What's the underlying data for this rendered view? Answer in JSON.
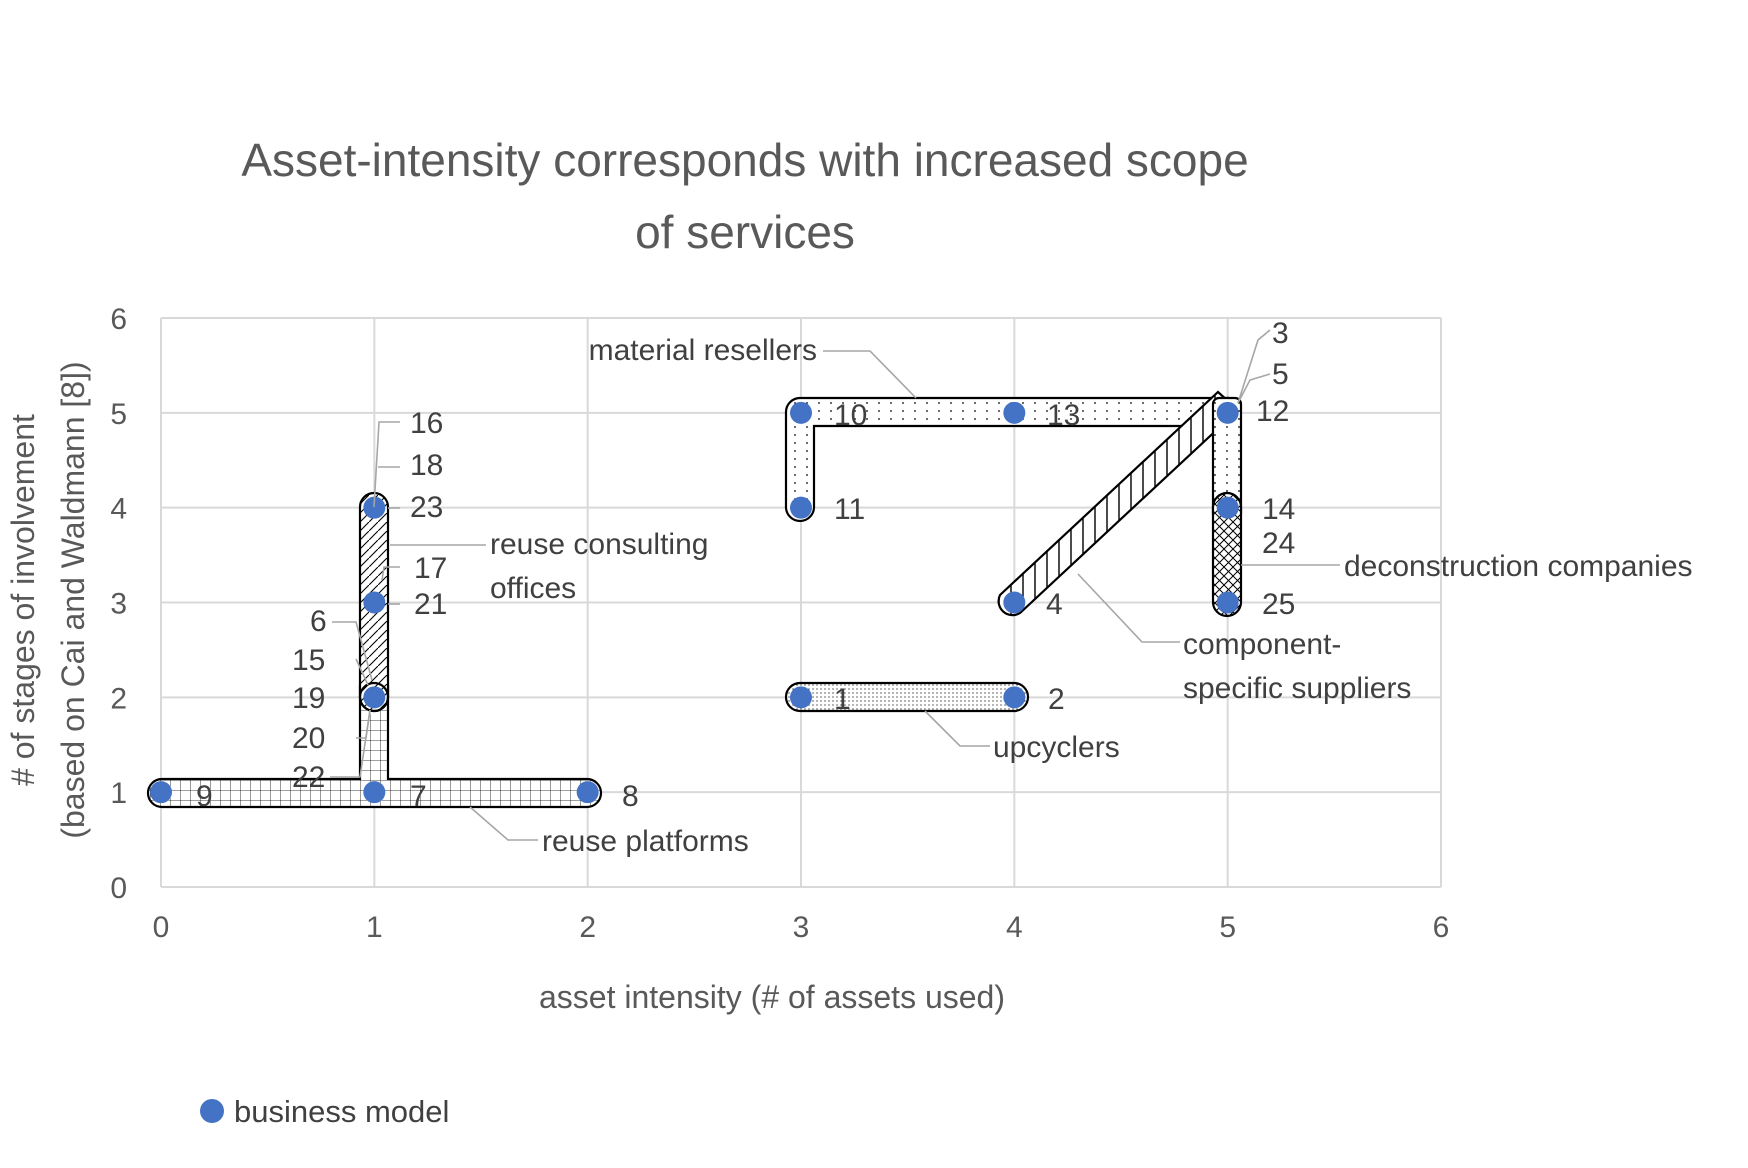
{
  "chart_data": {
    "type": "scatter",
    "title_lines": [
      "Asset-intensity corresponds with increased scope",
      "of services"
    ],
    "xlabel": "asset intensity (# of assets used)",
    "ylabel_lines": [
      "# of stages of involvement",
      "(based on Cai and Waldmann [8])"
    ],
    "xlim": [
      0,
      6
    ],
    "ylim": [
      0,
      6
    ],
    "xticks": [
      "0",
      "1",
      "2",
      "3",
      "4",
      "5",
      "6"
    ],
    "yticks": [
      "0",
      "1",
      "2",
      "3",
      "4",
      "5",
      "6"
    ],
    "grid": true,
    "legend": {
      "position": "bottom-left",
      "label": "business model",
      "color": "#4472c4"
    },
    "series": [
      {
        "name": "business model",
        "points": [
          {
            "x": 0,
            "y": 1
          },
          {
            "x": 1,
            "y": 1
          },
          {
            "x": 2,
            "y": 1
          },
          {
            "x": 1,
            "y": 2
          },
          {
            "x": 1,
            "y": 3
          },
          {
            "x": 1,
            "y": 4
          },
          {
            "x": 3,
            "y": 5
          },
          {
            "x": 4,
            "y": 5
          },
          {
            "x": 5,
            "y": 5
          },
          {
            "x": 3,
            "y": 4
          },
          {
            "x": 5,
            "y": 4
          },
          {
            "x": 5,
            "y": 3
          },
          {
            "x": 4,
            "y": 3
          },
          {
            "x": 3,
            "y": 2
          },
          {
            "x": 4,
            "y": 2
          }
        ]
      }
    ],
    "point_labels": [
      "9",
      "7",
      "8",
      "16",
      "18",
      "23",
      "17",
      "21",
      "6",
      "15",
      "19",
      "20",
      "22",
      "10",
      "13",
      "3",
      "5",
      "12",
      "11",
      "14",
      "24",
      "25",
      "4",
      "1",
      "2"
    ],
    "groups": [
      "material resellers",
      "reuse consulting",
      "offices",
      "deconstruction companies",
      "component-",
      "specific suppliers",
      "upcyclers",
      "reuse platforms"
    ]
  }
}
